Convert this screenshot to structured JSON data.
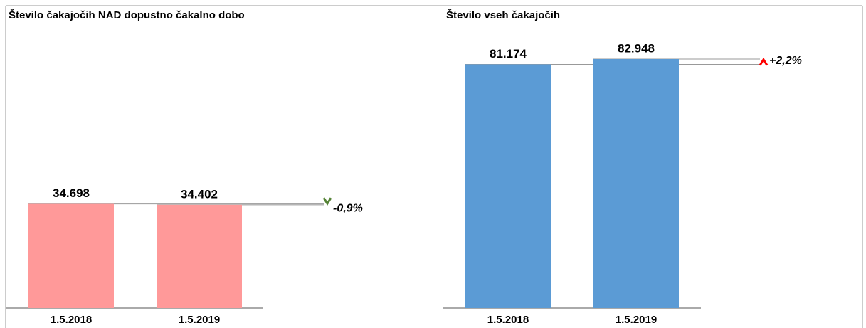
{
  "chart_data": [
    {
      "type": "bar",
      "title": "Število čakajočih NAD dopustno čakalno dobo",
      "categories": [
        "1.5.2018",
        "1.5.2019"
      ],
      "values": [
        34698,
        34402
      ],
      "value_labels": [
        "34.698",
        "34.402"
      ],
      "color": "#ff9999",
      "annotation": "-0,9%",
      "annotation_color": "#548235"
    },
    {
      "type": "bar",
      "title": "Število vseh čakajočih",
      "categories": [
        "1.5.2018",
        "1.5.2019"
      ],
      "values": [
        81174,
        82948
      ],
      "value_labels": [
        "81.174",
        "82.948"
      ],
      "color": "#5b9bd5",
      "annotation": "+2,2%",
      "annotation_color": "#ff0000"
    }
  ]
}
